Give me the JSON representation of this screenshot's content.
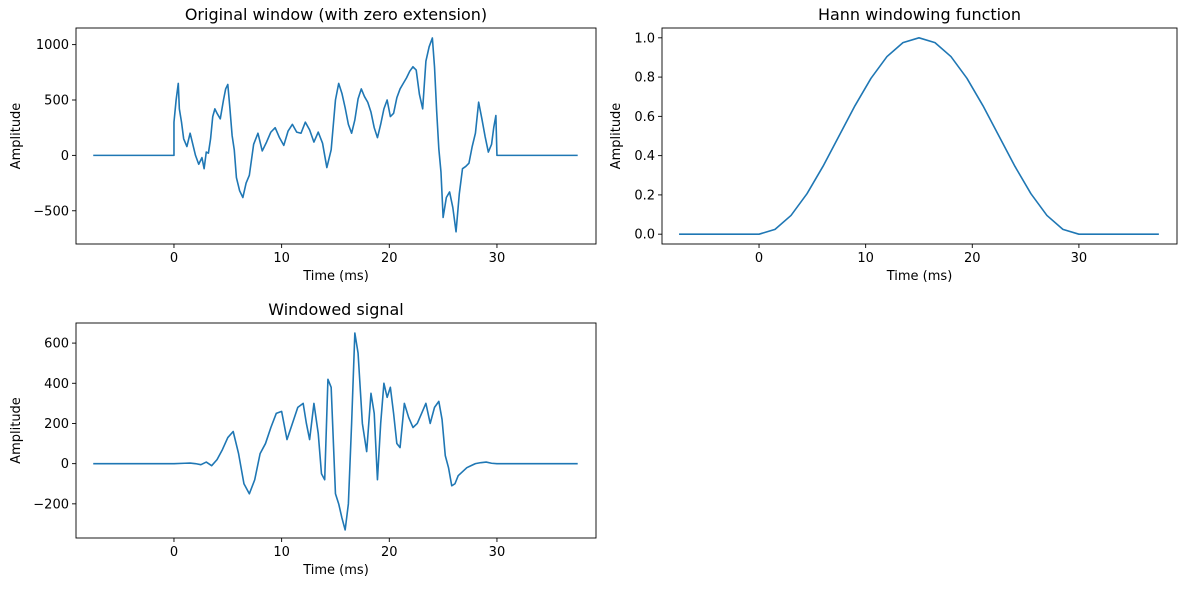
{
  "line_color": "#1f77b4",
  "chart_data": [
    {
      "type": "line",
      "title": "Original window (with zero extension)",
      "xlabel": "Time (ms)",
      "ylabel": "Amplitude",
      "xlim": [
        -9.1,
        39.2
      ],
      "ylim": [
        -800,
        1150
      ],
      "xticks": [
        0,
        10,
        20,
        30
      ],
      "xtick_labels": [
        "0",
        "10",
        "20",
        "30"
      ],
      "yticks": [
        -500,
        0,
        500,
        1000
      ],
      "ytick_labels": [
        "−500",
        "0",
        "500",
        "1000"
      ],
      "grid": false,
      "series": [
        {
          "x": [
            -7.5,
            0,
            0,
            0.2,
            0.4,
            0.5,
            0.7,
            0.9,
            1.2,
            1.5,
            1.7,
            2.0,
            2.3,
            2.6,
            2.8,
            3.0,
            3.2,
            3.4,
            3.6,
            3.8,
            4.0,
            4.3,
            4.6,
            4.8,
            5.0,
            5.2,
            5.4,
            5.6,
            5.8,
            6.1,
            6.4,
            6.7,
            7.0,
            7.4,
            7.8,
            8.2,
            8.6,
            9.0,
            9.4,
            9.8,
            10.2,
            10.6,
            11.0,
            11.4,
            11.8,
            12.2,
            12.6,
            13.0,
            13.4,
            13.8,
            14.2,
            14.6,
            15.0,
            15.3,
            15.6,
            15.9,
            16.2,
            16.5,
            16.8,
            17.1,
            17.4,
            17.7,
            18.0,
            18.3,
            18.6,
            18.9,
            19.2,
            19.5,
            19.8,
            20.1,
            20.4,
            20.7,
            21.0,
            21.3,
            21.6,
            21.9,
            22.2,
            22.5,
            22.8,
            23.1,
            23.4,
            23.7,
            24.0,
            24.2,
            24.4,
            24.6,
            24.8,
            25.0,
            25.3,
            25.6,
            25.9,
            26.2,
            26.5,
            26.8,
            27.1,
            27.4,
            27.7,
            28.0,
            28.3,
            28.6,
            28.9,
            29.2,
            29.5,
            29.7,
            29.9,
            30.0,
            30.0,
            30.1,
            37.5
          ],
          "y": [
            0,
            0,
            300,
            500,
            650,
            420,
            300,
            150,
            80,
            200,
            120,
            0,
            -80,
            -20,
            -120,
            30,
            20,
            150,
            350,
            420,
            380,
            330,
            500,
            600,
            640,
            420,
            180,
            50,
            -200,
            -320,
            -380,
            -250,
            -180,
            100,
            200,
            40,
            120,
            210,
            250,
            160,
            90,
            220,
            280,
            210,
            200,
            300,
            230,
            120,
            210,
            110,
            -110,
            50,
            500,
            650,
            560,
            430,
            280,
            200,
            320,
            510,
            600,
            530,
            480,
            390,
            250,
            160,
            280,
            420,
            500,
            350,
            380,
            520,
            600,
            650,
            700,
            760,
            800,
            770,
            550,
            420,
            850,
            980,
            1060,
            800,
            400,
            60,
            -150,
            -560,
            -380,
            -330,
            -470,
            -690,
            -350,
            -120,
            -100,
            -70,
            80,
            200,
            480,
            330,
            170,
            30,
            100,
            250,
            360,
            0,
            0,
            0,
            0
          ]
        }
      ]
    },
    {
      "type": "line",
      "title": "Hann windowing function",
      "xlabel": "Time (ms)",
      "ylabel": "Amplitude",
      "xlim": [
        -9.1,
        39.2
      ],
      "ylim": [
        -0.05,
        1.05
      ],
      "xticks": [
        0,
        10,
        20,
        30
      ],
      "xtick_labels": [
        "0",
        "10",
        "20",
        "30"
      ],
      "yticks": [
        0.0,
        0.2,
        0.4,
        0.6,
        0.8,
        1.0
      ],
      "ytick_labels": [
        "0.0",
        "0.2",
        "0.4",
        "0.6",
        "0.8",
        "1.0"
      ],
      "grid": false,
      "series": [
        {
          "x": [
            -7.5,
            0,
            1.5,
            3,
            4.5,
            6,
            7.5,
            9,
            10.5,
            12,
            13.5,
            15,
            16.5,
            18,
            19.5,
            21,
            22.5,
            24,
            25.5,
            27,
            28.5,
            30,
            37.5
          ],
          "y": [
            0,
            0,
            0.0245,
            0.0955,
            0.2061,
            0.3455,
            0.5,
            0.6545,
            0.7939,
            0.9045,
            0.9755,
            1.0,
            0.9755,
            0.9045,
            0.7939,
            0.6545,
            0.5,
            0.3455,
            0.2061,
            0.0955,
            0.0245,
            0,
            0
          ]
        }
      ]
    },
    {
      "type": "line",
      "title": "Windowed signal",
      "xlabel": "Time (ms)",
      "ylabel": "Amplitude",
      "xlim": [
        -9.1,
        39.2
      ],
      "ylim": [
        -370,
        700
      ],
      "xticks": [
        0,
        10,
        20,
        30
      ],
      "xtick_labels": [
        "0",
        "10",
        "20",
        "30"
      ],
      "yticks": [
        -200,
        0,
        200,
        400,
        600
      ],
      "ytick_labels": [
        "−200",
        "0",
        "200",
        "400",
        "600"
      ],
      "grid": false,
      "series": [
        {
          "x": [
            -7.5,
            0,
            1.0,
            1.5,
            2.0,
            2.5,
            3.0,
            3.5,
            4.0,
            4.5,
            5.0,
            5.5,
            6.0,
            6.5,
            7.0,
            7.5,
            8.0,
            8.5,
            9.0,
            9.5,
            10.0,
            10.5,
            11.0,
            11.5,
            12.0,
            12.3,
            12.6,
            13.0,
            13.4,
            13.7,
            14.0,
            14.3,
            14.6,
            15.0,
            15.3,
            15.6,
            15.9,
            16.2,
            16.5,
            16.8,
            17.1,
            17.5,
            17.9,
            18.3,
            18.6,
            18.9,
            19.2,
            19.5,
            19.8,
            20.1,
            20.4,
            20.7,
            21.0,
            21.4,
            21.8,
            22.2,
            22.6,
            23.0,
            23.4,
            23.8,
            24.2,
            24.6,
            24.9,
            25.2,
            25.5,
            25.8,
            26.1,
            26.4,
            26.8,
            27.2,
            27.6,
            28.0,
            28.5,
            29.0,
            29.5,
            30.0,
            37.5
          ],
          "y": [
            0,
            0,
            2,
            3,
            0,
            -5,
            8,
            -10,
            20,
            70,
            130,
            160,
            50,
            -100,
            -150,
            -80,
            50,
            100,
            180,
            250,
            260,
            120,
            200,
            280,
            300,
            200,
            120,
            300,
            150,
            -50,
            -80,
            420,
            380,
            -150,
            -200,
            -270,
            -330,
            -200,
            200,
            650,
            550,
            200,
            60,
            350,
            250,
            -80,
            200,
            400,
            330,
            380,
            250,
            100,
            80,
            300,
            230,
            180,
            200,
            250,
            300,
            200,
            280,
            310,
            220,
            40,
            -20,
            -110,
            -100,
            -60,
            -40,
            -20,
            -10,
            0,
            5,
            8,
            2,
            0,
            0
          ]
        }
      ]
    }
  ]
}
